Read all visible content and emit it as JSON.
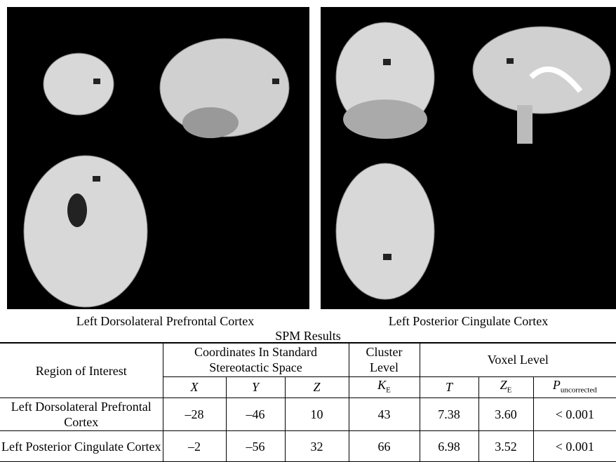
{
  "panels": [
    {
      "caption": "Left Dorsolateral Prefrontal Cortex"
    },
    {
      "caption": "Left Posterior Cingulate Cortex"
    }
  ],
  "table": {
    "title": "SPM Results",
    "header": {
      "region": "Region of Interest",
      "coordinates": "Coordinates In Standard Stereotactic Space",
      "cluster": "Cluster Level",
      "voxel": "Voxel Level",
      "columns": [
        {
          "main": "X"
        },
        {
          "main": "Y"
        },
        {
          "main": "Z"
        },
        {
          "main": "K",
          "sub": "E"
        },
        {
          "main": "T"
        },
        {
          "main": "Z",
          "sub": "E"
        },
        {
          "main": "P",
          "sub": "uncorrected"
        }
      ]
    },
    "rows": [
      [
        "Left Dorsolateral Prefrontal Cortex",
        "–28",
        "–46",
        "10",
        "43",
        "7.38",
        "3.60",
        "< 0.001"
      ],
      [
        "Left Posterior Cingulate Cortex",
        "–2",
        "–56",
        "32",
        "66",
        "6.98",
        "3.52",
        "< 0.001"
      ]
    ]
  }
}
